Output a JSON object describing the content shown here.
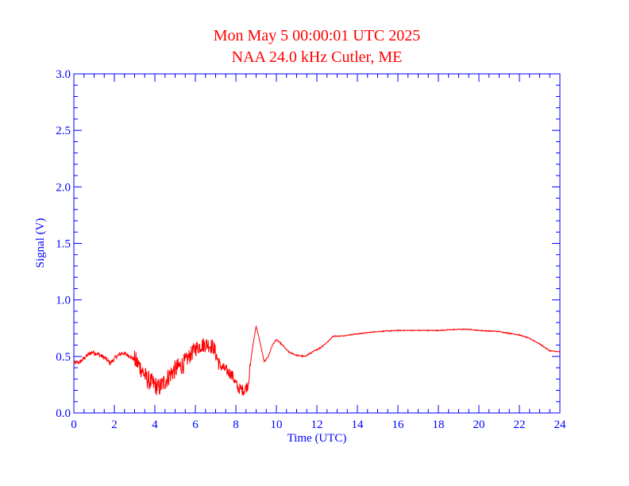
{
  "chart_data": {
    "type": "line",
    "title": "Mon May 5 00:00:01 UTC 2025",
    "subtitle": "NAA 24.0 kHz Cutler, ME",
    "xlabel": "Time (UTC)",
    "ylabel": "Signal (V)",
    "xlim": [
      0,
      24
    ],
    "ylim": [
      0.0,
      3.0
    ],
    "xticks": [
      "0",
      "2",
      "4",
      "6",
      "8",
      "10",
      "12",
      "14",
      "16",
      "18",
      "20",
      "22",
      "24"
    ],
    "yticks": [
      "0.0",
      "0.5",
      "1.0",
      "1.5",
      "2.0",
      "2.5",
      "3.0"
    ],
    "grid": false,
    "series": [
      {
        "color": "#ff0000",
        "x": [
          0.0,
          0.3,
          0.6,
          0.9,
          1.2,
          1.5,
          1.8,
          2.1,
          2.4,
          2.7,
          3.0,
          3.3,
          3.6,
          3.9,
          4.2,
          4.5,
          4.8,
          5.1,
          5.4,
          5.7,
          6.0,
          6.3,
          6.6,
          6.9,
          7.2,
          7.5,
          7.8,
          8.1,
          8.4,
          8.6,
          8.8,
          9.0,
          9.2,
          9.4,
          9.6,
          9.8,
          10.0,
          10.3,
          10.6,
          11.0,
          11.4,
          11.8,
          12.2,
          12.6,
          12.8,
          13.2,
          13.6,
          14.0,
          15.0,
          16.0,
          17.0,
          18.0,
          19.0,
          19.5,
          20.0,
          21.0,
          22.0,
          22.5,
          23.0,
          23.5,
          24.0
        ],
        "y": [
          0.44,
          0.45,
          0.5,
          0.54,
          0.52,
          0.49,
          0.44,
          0.5,
          0.53,
          0.51,
          0.47,
          0.4,
          0.3,
          0.26,
          0.22,
          0.28,
          0.35,
          0.4,
          0.43,
          0.5,
          0.57,
          0.6,
          0.61,
          0.58,
          0.42,
          0.38,
          0.34,
          0.22,
          0.2,
          0.25,
          0.55,
          0.77,
          0.62,
          0.45,
          0.5,
          0.6,
          0.65,
          0.6,
          0.54,
          0.51,
          0.5,
          0.54,
          0.58,
          0.64,
          0.68,
          0.68,
          0.69,
          0.7,
          0.72,
          0.73,
          0.73,
          0.73,
          0.74,
          0.74,
          0.73,
          0.72,
          0.69,
          0.66,
          0.61,
          0.55,
          0.54
        ]
      }
    ]
  }
}
